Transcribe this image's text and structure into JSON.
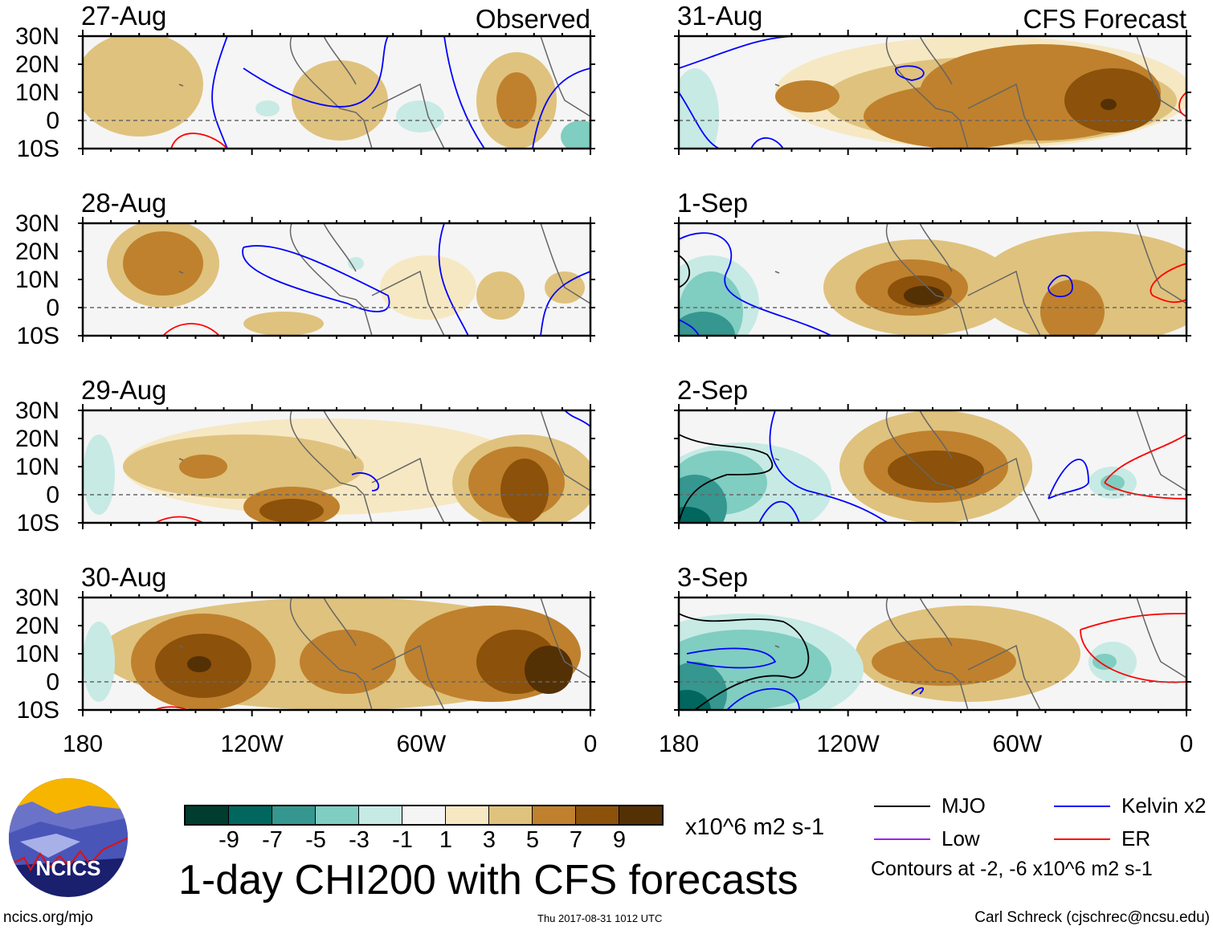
{
  "panels": [
    {
      "date": "27-Aug",
      "label": "Observed"
    },
    {
      "date": "28-Aug"
    },
    {
      "date": "29-Aug"
    },
    {
      "date": "30-Aug"
    },
    {
      "date": "31-Aug",
      "label": "CFS Forecast"
    },
    {
      "date": "1-Sep"
    },
    {
      "date": "2-Sep"
    },
    {
      "date": "3-Sep"
    }
  ],
  "lat_labels": [
    "30N",
    "20N",
    "10N",
    "0",
    "10S"
  ],
  "lon_labels": [
    "180",
    "120W",
    "60W",
    "0"
  ],
  "colorbar": {
    "colors": [
      "#003c30",
      "#01665e",
      "#35978f",
      "#80cdc1",
      "#c7eae5",
      "#f5f5f5",
      "#f6e8c3",
      "#dfc27d",
      "#bf812d",
      "#8c510a",
      "#543005"
    ],
    "labels": [
      "-9",
      "-7",
      "-5",
      "-3",
      "-1",
      "1",
      "3",
      "5",
      "7",
      "9"
    ],
    "units": "x10^6 m2 s-1"
  },
  "title": "1-day CHI200 with CFS forecasts",
  "legend": [
    {
      "label": "MJO",
      "color": "#000000"
    },
    {
      "label": "Kelvin x2",
      "color": "#0000ff"
    },
    {
      "label": "Low",
      "color": "#a020f0"
    },
    {
      "label": "ER",
      "color": "#ff0000"
    }
  ],
  "contour_note": "Contours at -2, -6 x10^6 m2 s-1",
  "logo_text": "NCICS",
  "footer": {
    "left": "ncics.org/mjo",
    "center": "Thu 2017-08-31 1012 UTC",
    "right": "Carl Schreck (cjschrec@ncsu.edu)"
  }
}
